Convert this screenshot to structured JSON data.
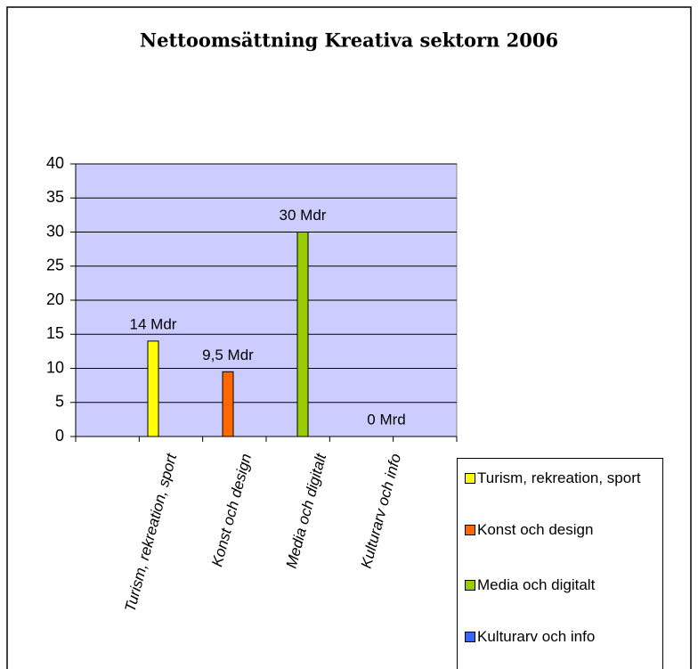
{
  "chart_data": {
    "type": "bar",
    "title": "Nettoomsättning Kreativa sektorn 2006",
    "categories": [
      "Turism, rekreation, sport",
      "Konst och design",
      "Media och digitalt",
      "Kulturarv och info"
    ],
    "values": [
      14,
      9.5,
      30,
      0
    ],
    "value_labels": [
      "14 Mdr",
      "9,5 Mdr",
      "30 Mdr",
      "0 Mrd"
    ],
    "colors": [
      "#ffff00",
      "#ff6600",
      "#99cc00",
      "#3366ff"
    ],
    "ylim": [
      0,
      40
    ],
    "yticks": [
      0,
      5,
      10,
      15,
      20,
      25,
      30,
      35,
      40
    ],
    "grid": true,
    "legend": "bottom-right"
  }
}
